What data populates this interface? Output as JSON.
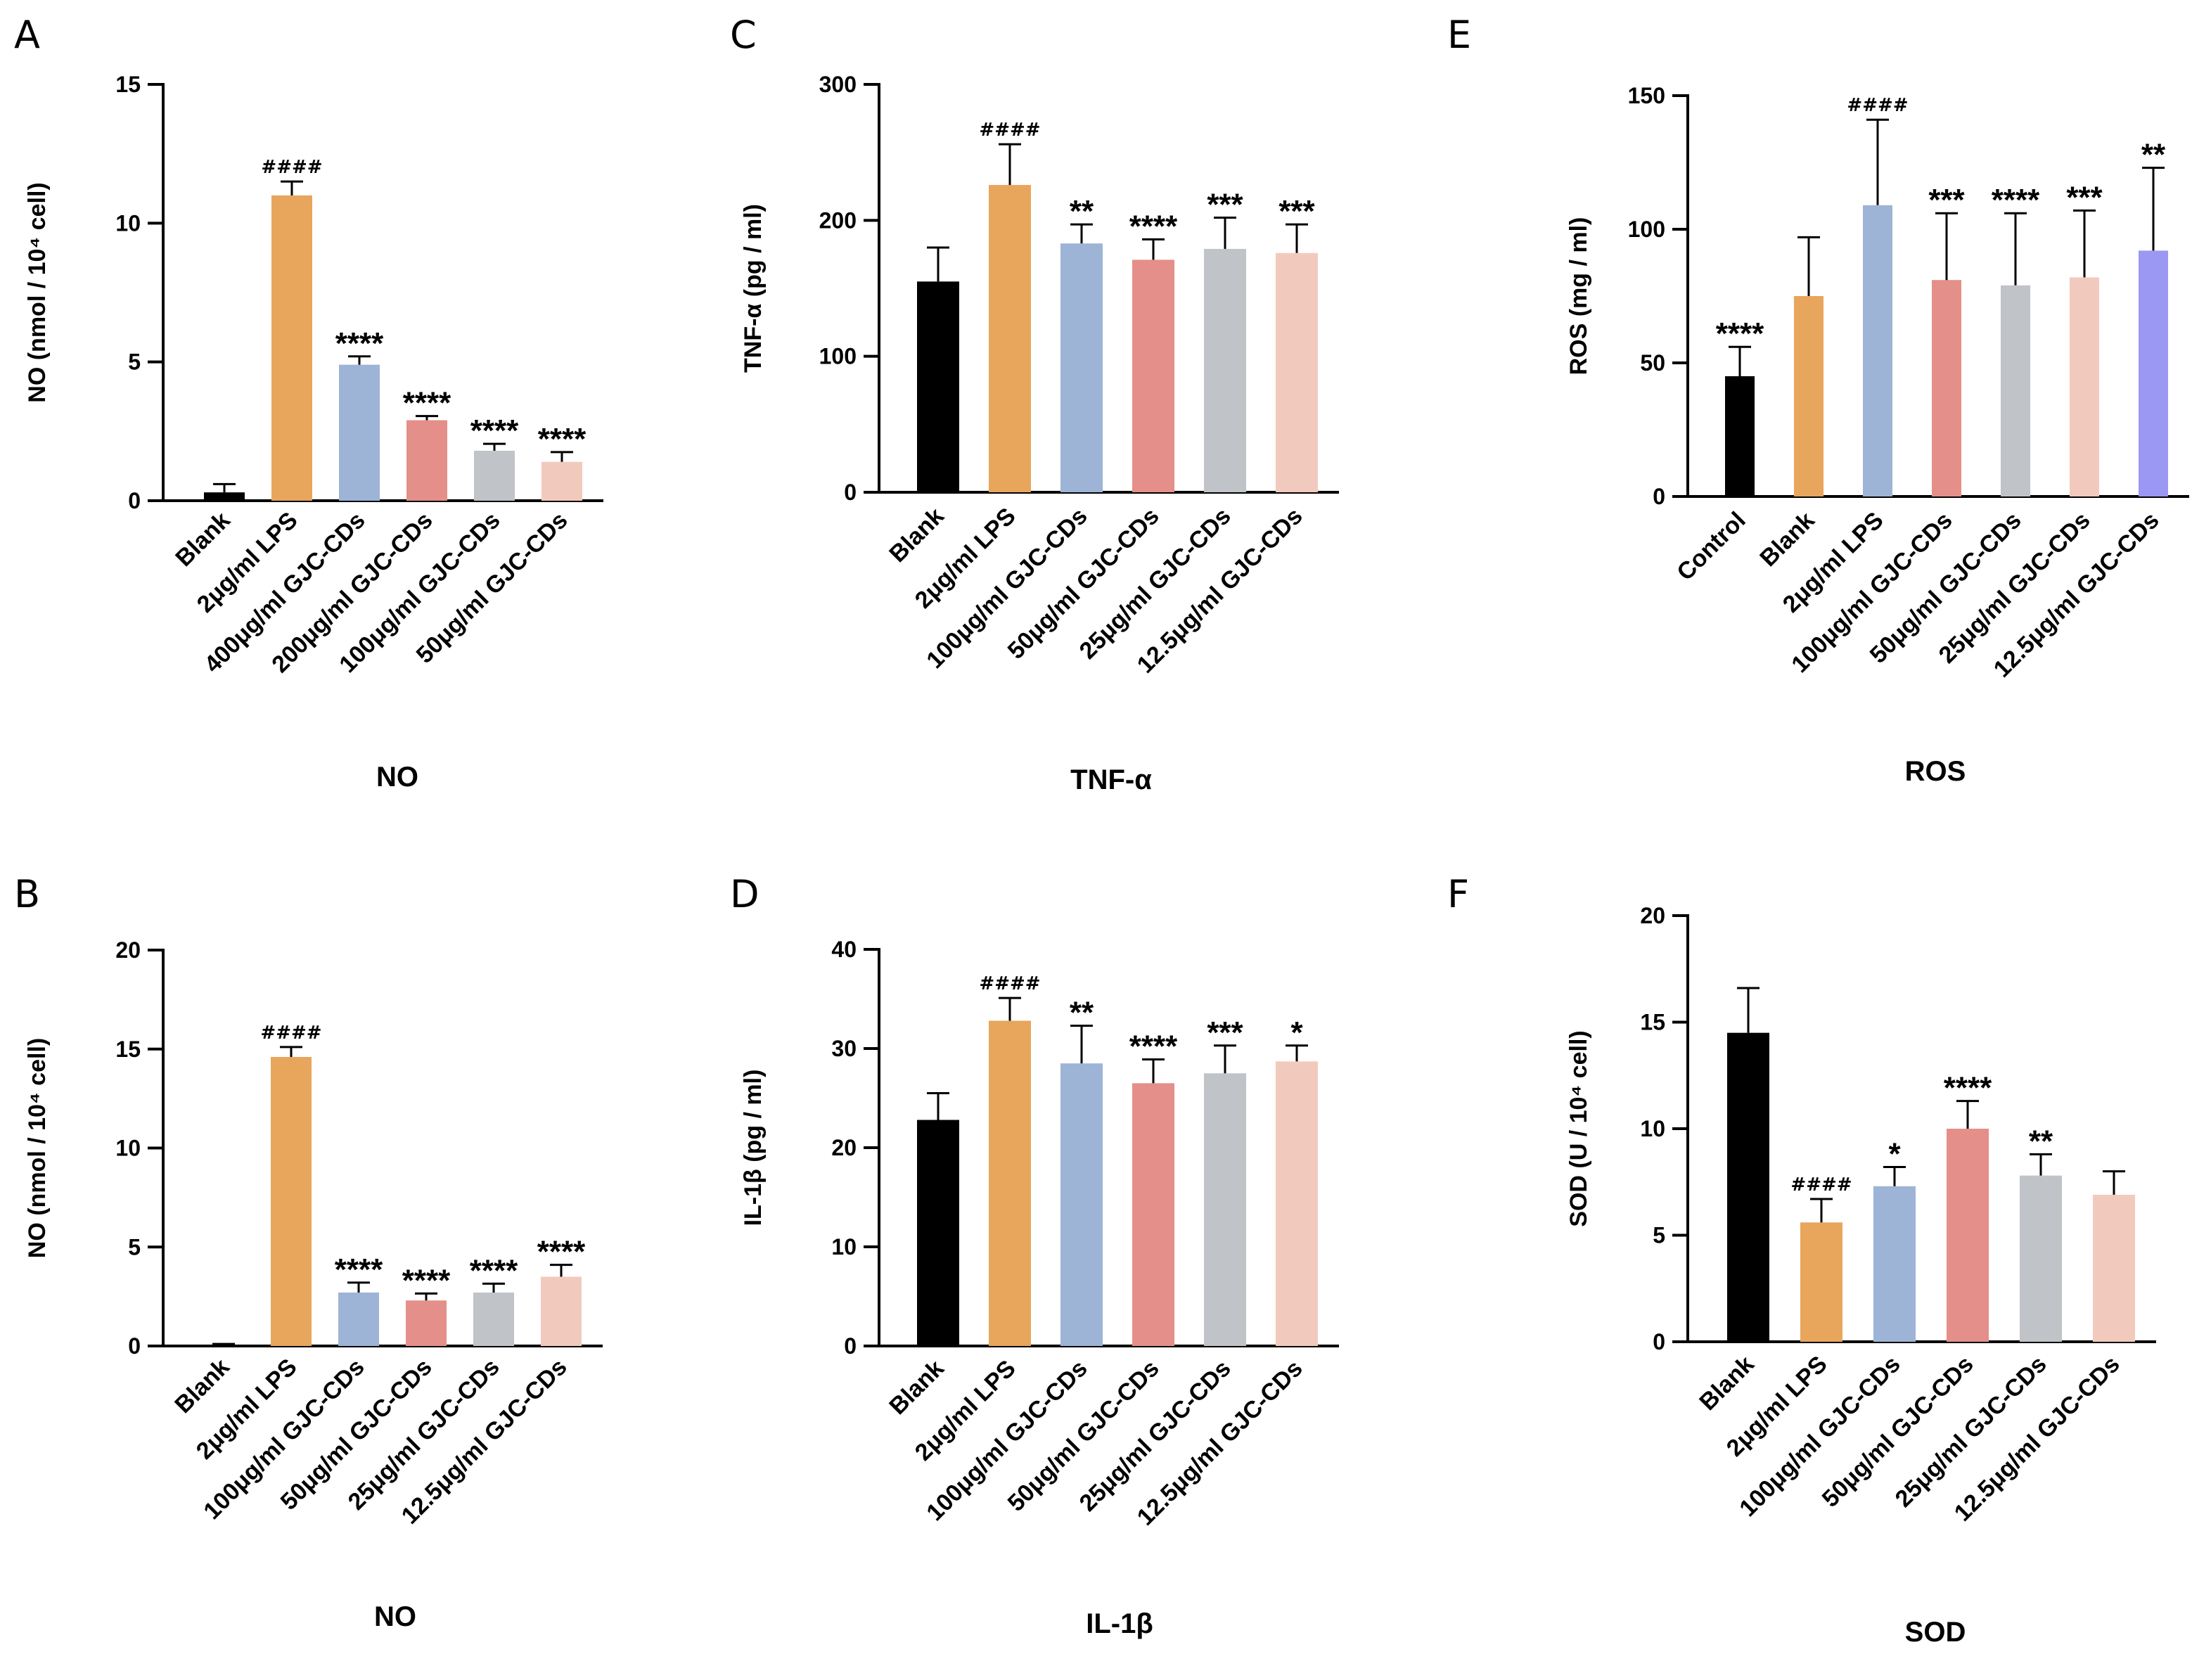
{
  "chart_data": [
    {
      "type": "bar",
      "panel": "A",
      "title": "NO",
      "ylabel": "NO (nmol / 10⁴ cell)",
      "ylim": [
        0,
        15
      ],
      "yticks": [
        0,
        5,
        10,
        15
      ],
      "categories": [
        "Blank",
        "2μg/ml LPS",
        "400μg/ml GJC-CDs",
        "200μg/ml GJC-CDs",
        "100μg/ml GJC-CDs",
        "50μg/ml GJC-CDs"
      ],
      "values": [
        0.3,
        11.0,
        4.9,
        2.9,
        1.8,
        1.4
      ],
      "errors": [
        0.3,
        0.5,
        0.3,
        0.15,
        0.25,
        0.35
      ],
      "annotations": [
        "",
        "####",
        "****",
        "****",
        "****",
        "****"
      ],
      "colors": [
        "#000000",
        "#e8a55c",
        "#9db4d6",
        "#e48f89",
        "#c0c3c7",
        "#f2cabd"
      ]
    },
    {
      "type": "bar",
      "panel": "B",
      "title": "NO",
      "ylabel": "NO (nmol / 10⁴ cell)",
      "ylim": [
        0,
        20
      ],
      "yticks": [
        0,
        5,
        10,
        15,
        20
      ],
      "categories": [
        "Blank",
        "2μg/ml LPS",
        "100μg/ml GJC-CDs",
        "50μg/ml GJC-CDs",
        "25μg/ml GJC-CDs",
        "12.5μg/ml GJC-CDs"
      ],
      "values": [
        0.05,
        14.6,
        2.7,
        2.3,
        2.7,
        3.5
      ],
      "errors": [
        0.05,
        0.5,
        0.5,
        0.35,
        0.45,
        0.6
      ],
      "annotations": [
        "",
        "####",
        "****",
        "****",
        "****",
        "****"
      ],
      "colors": [
        "#000000",
        "#e8a55c",
        "#9db4d6",
        "#e48f89",
        "#c0c3c7",
        "#f2cabd"
      ]
    },
    {
      "type": "bar",
      "panel": "C",
      "title": "TNF-α",
      "ylabel": "TNF-α (pg / ml)",
      "ylim": [
        0,
        300
      ],
      "yticks": [
        0,
        100,
        200,
        300
      ],
      "categories": [
        "Blank",
        "2μg/ml LPS",
        "100μg/ml GJC-CDs",
        "50μg/ml GJC-CDs",
        "25μg/ml GJC-CDs",
        "12.5μg/ml GJC-CDs"
      ],
      "values": [
        155,
        226,
        183,
        171,
        179,
        176
      ],
      "errors": [
        25,
        30,
        14,
        15,
        23,
        21
      ],
      "annotations": [
        "",
        "####",
        "**",
        "****",
        "***",
        "***"
      ],
      "colors": [
        "#000000",
        "#e8a55c",
        "#9db4d6",
        "#e48f89",
        "#c0c3c7",
        "#f2cabd"
      ]
    },
    {
      "type": "bar",
      "panel": "D",
      "title": "IL-1β",
      "ylabel": "IL-1β (pg / ml)",
      "ylim": [
        0,
        40
      ],
      "yticks": [
        0,
        10,
        20,
        30,
        40
      ],
      "categories": [
        "Blank",
        "2μg/ml LPS",
        "100μg/ml GJC-CDs",
        "50μg/ml GJC-CDs",
        "25μg/ml GJC-CDs",
        "12.5μg/ml GJC-CDs"
      ],
      "values": [
        22.8,
        32.8,
        28.5,
        26.5,
        27.5,
        28.7
      ],
      "errors": [
        2.7,
        2.3,
        3.8,
        2.4,
        2.8,
        1.6
      ],
      "annotations": [
        "",
        "####",
        "**",
        "****",
        "***",
        "*"
      ],
      "colors": [
        "#000000",
        "#e8a55c",
        "#9db4d6",
        "#e48f89",
        "#c0c3c7",
        "#f2cabd"
      ]
    },
    {
      "type": "bar",
      "panel": "E",
      "title": "ROS",
      "ylabel": "ROS (mg / ml)",
      "ylim": [
        0,
        150
      ],
      "yticks": [
        0,
        50,
        100,
        150
      ],
      "categories": [
        "Control",
        "Blank",
        "2μg/ml LPS",
        "100μg/ml GJC-CDs",
        "50μg/ml GJC-CDs",
        "25μg/ml GJC-CDs",
        "12.5μg/ml GJC-CDs"
      ],
      "values": [
        45,
        75,
        109,
        81,
        79,
        82,
        92
      ],
      "errors": [
        11,
        22,
        32,
        25,
        27,
        25,
        31
      ],
      "annotations": [
        "****",
        "",
        "####",
        "***",
        "****",
        "***",
        "**"
      ],
      "colors": [
        "#000000",
        "#e8a55c",
        "#9db4d6",
        "#e48f89",
        "#c0c3c7",
        "#f2cabd",
        "#9a98f2"
      ]
    },
    {
      "type": "bar",
      "panel": "F",
      "title": "SOD",
      "ylabel": "SOD (U / 10⁴ cell)",
      "ylim": [
        0,
        20
      ],
      "yticks": [
        0,
        5,
        10,
        15,
        20
      ],
      "categories": [
        "Blank",
        "2μg/ml LPS",
        "100μg/ml GJC-CDs",
        "50μg/ml GJC-CDs",
        "25μg/ml GJC-CDs",
        "12.5μg/ml GJC-CDs"
      ],
      "values": [
        14.5,
        5.6,
        7.3,
        10.0,
        7.8,
        6.9
      ],
      "errors": [
        2.1,
        1.1,
        0.9,
        1.3,
        1.0,
        1.1
      ],
      "annotations": [
        "",
        "####",
        "*",
        "****",
        "**",
        ""
      ],
      "colors": [
        "#000000",
        "#e8a55c",
        "#9db4d6",
        "#e48f89",
        "#c0c3c7",
        "#f2cabd"
      ]
    }
  ]
}
